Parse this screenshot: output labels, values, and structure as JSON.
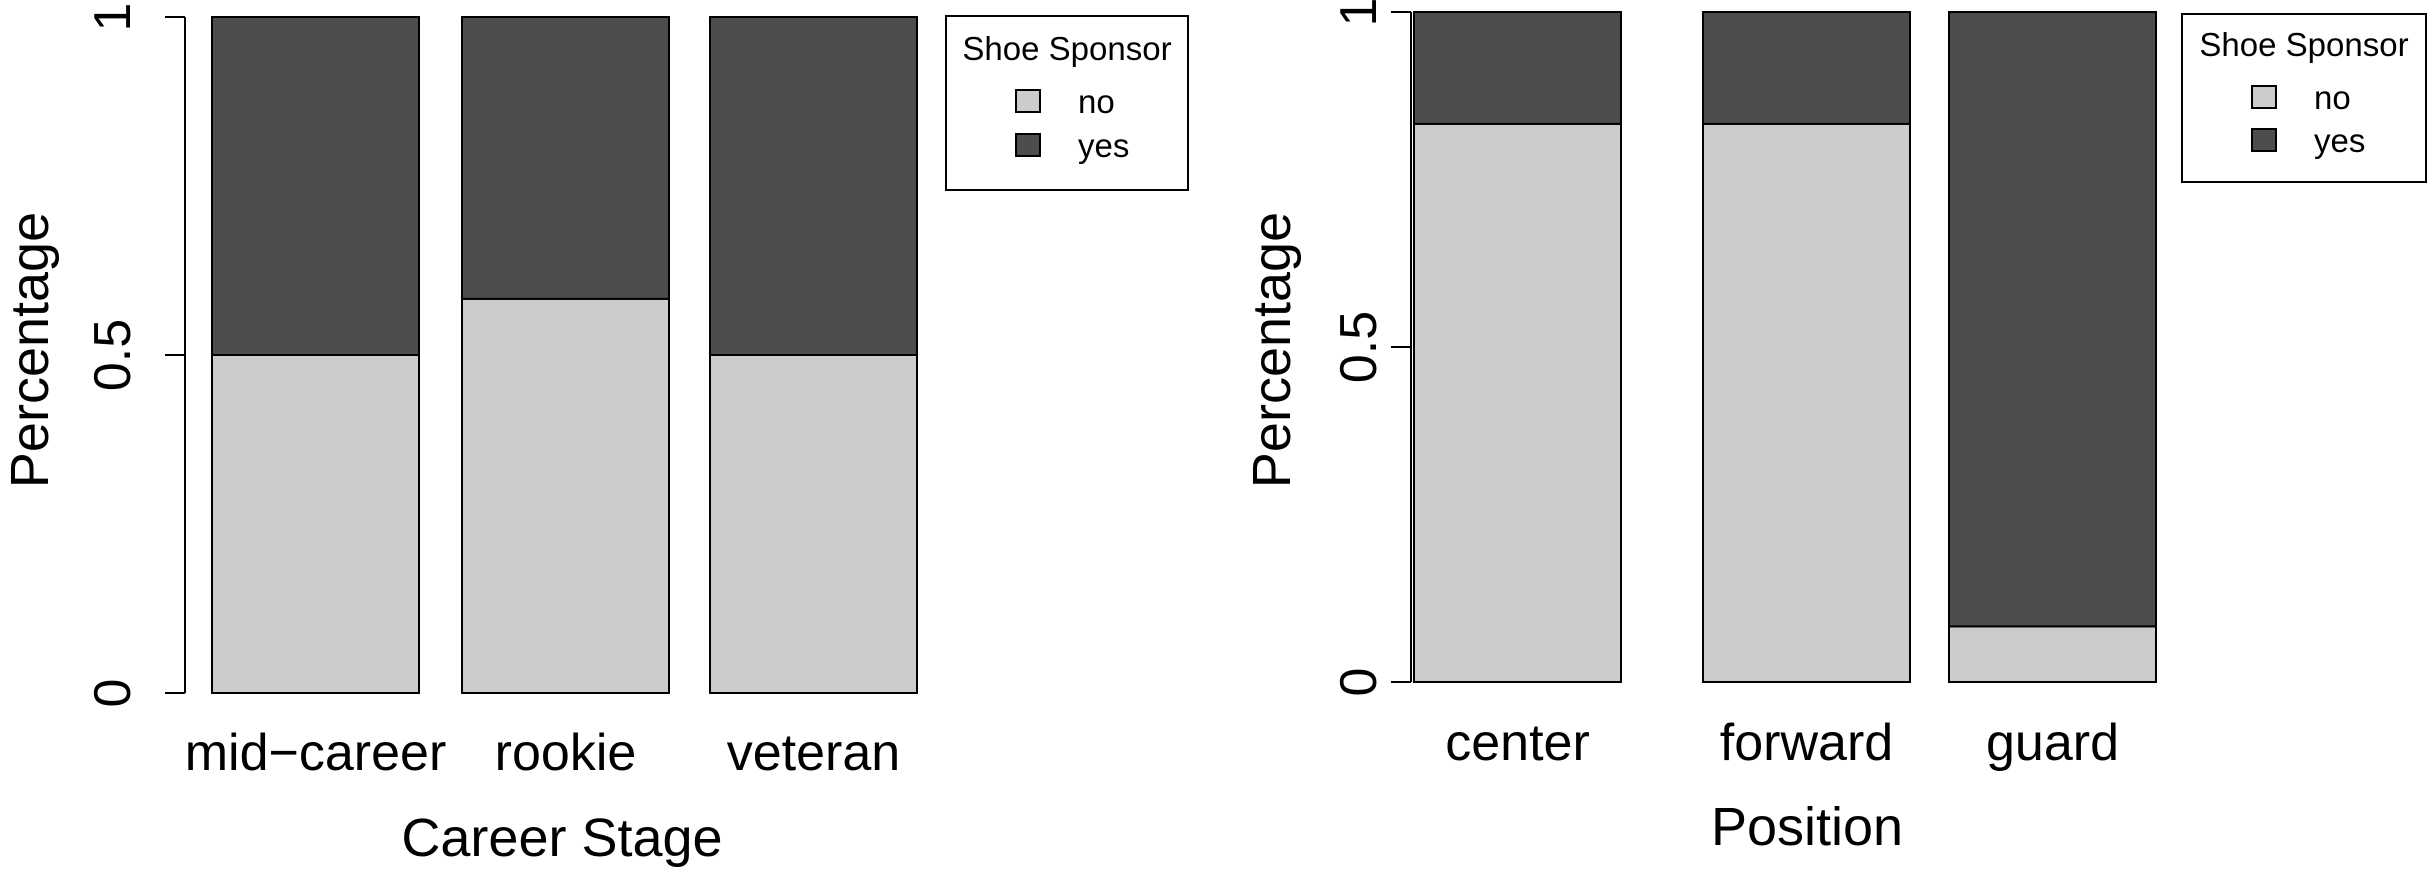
{
  "colors": {
    "no": "#cccccc",
    "yes": "#4d4d4d",
    "stroke": "#000000"
  },
  "chart_data": [
    {
      "type": "bar",
      "stacked": true,
      "title": "",
      "xlabel": "Career Stage",
      "ylabel": "Percentage",
      "ylim": [
        0,
        1
      ],
      "yticks": [
        0,
        0.5,
        1
      ],
      "ytick_labels": [
        "0",
        "0.5",
        "1"
      ],
      "categories": [
        "mid−career",
        "rookie",
        "veteran"
      ],
      "series": [
        {
          "name": "no",
          "values": [
            0.5,
            0.583,
            0.5
          ]
        },
        {
          "name": "yes",
          "values": [
            0.5,
            0.417,
            0.5
          ]
        }
      ],
      "legend": {
        "title": "Shoe Sponsor",
        "entries": [
          "no",
          "yes"
        ],
        "placement": "top-right"
      },
      "grid": false
    },
    {
      "type": "bar",
      "stacked": true,
      "title": "",
      "xlabel": "Position",
      "ylabel": "Percentage",
      "ylim": [
        0,
        1
      ],
      "yticks": [
        0,
        0.5,
        1
      ],
      "ytick_labels": [
        "0",
        "0.5",
        "1"
      ],
      "categories": [
        "center",
        "forward",
        "guard"
      ],
      "series": [
        {
          "name": "no",
          "values": [
            0.833,
            0.833,
            0.083
          ]
        },
        {
          "name": "yes",
          "values": [
            0.167,
            0.167,
            0.917
          ]
        }
      ],
      "legend": {
        "title": "Shoe Sponsor",
        "entries": [
          "no",
          "yes"
        ],
        "placement": "top-right"
      },
      "grid": false
    }
  ]
}
